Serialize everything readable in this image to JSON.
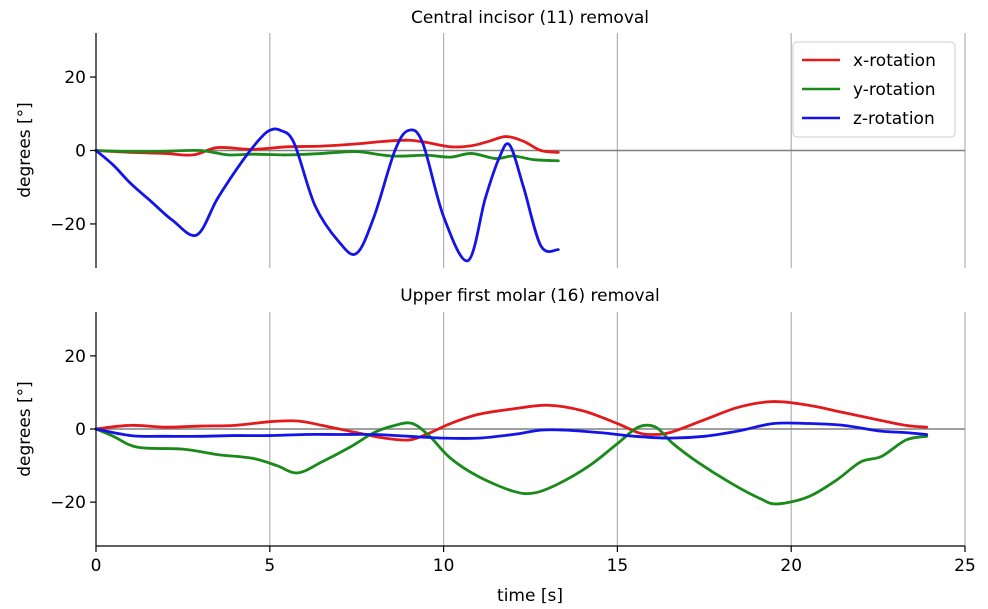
{
  "chart_data": [
    {
      "type": "line",
      "title": "Central incisor (11) removal",
      "xlabel": "",
      "ylabel": "degrees [°]",
      "xlim": [
        0,
        25
      ],
      "ylim": [
        -32,
        32
      ],
      "xticks": [
        0,
        5,
        10,
        15,
        20,
        25
      ],
      "yticks": [
        -20,
        0,
        20
      ],
      "ytick_labels": [
        "−20",
        "0",
        "20"
      ],
      "grid": "vertical",
      "legend": "top-right",
      "series": [
        {
          "name": "x-rotation",
          "color": "#e31a1c",
          "x": [
            0,
            1,
            2,
            2.8,
            3.5,
            4.5,
            5.5,
            6.5,
            7.5,
            8.3,
            9,
            9.5,
            10.2,
            10.8,
            11.3,
            11.8,
            12.3,
            12.8,
            13.3
          ],
          "y": [
            0,
            -0.5,
            -0.8,
            -1.2,
            0.8,
            0.3,
            1.0,
            1.2,
            1.8,
            2.5,
            2.8,
            2.2,
            1.0,
            1.3,
            2.5,
            3.8,
            2.5,
            0.0,
            -0.5
          ]
        },
        {
          "name": "y-rotation",
          "color": "#1a8a1a",
          "x": [
            0,
            1,
            2,
            3,
            3.8,
            4.5,
            5.5,
            6.5,
            7.5,
            8.5,
            9.5,
            10.2,
            10.8,
            11.5,
            12,
            12.6,
            13.3
          ],
          "y": [
            0,
            -0.3,
            -0.2,
            0.0,
            -1.2,
            -1.0,
            -1.2,
            -0.8,
            -0.3,
            -1.5,
            -1.3,
            -1.8,
            -0.8,
            -2.2,
            -1.5,
            -2.5,
            -2.8
          ]
        },
        {
          "name": "z-rotation",
          "color": "#1414e6",
          "x": [
            0,
            0.5,
            1,
            1.6,
            2.2,
            2.9,
            3.5,
            4.2,
            4.7,
            5.0,
            5.3,
            5.7,
            6.3,
            7.0,
            7.5,
            8.0,
            8.6,
            9.0,
            9.4,
            10.0,
            10.7,
            11.2,
            11.6,
            11.9,
            12.3,
            12.8,
            13.3
          ],
          "y": [
            0,
            -4,
            -9,
            -14,
            -19,
            -23,
            -13,
            -3,
            3,
            5.5,
            5.5,
            2,
            -15,
            -25,
            -28,
            -18,
            0,
            5.5,
            2,
            -18,
            -30,
            -13,
            -2,
            1.5,
            -10,
            -26,
            -27
          ]
        }
      ]
    },
    {
      "type": "line",
      "title": "Upper first molar (16) removal",
      "xlabel": "time [s]",
      "ylabel": "degrees [°]",
      "xlim": [
        0,
        25
      ],
      "ylim": [
        -32,
        32
      ],
      "xticks": [
        0,
        5,
        10,
        15,
        20,
        25
      ],
      "yticks": [
        -20,
        0,
        20
      ],
      "ytick_labels": [
        "−20",
        "0",
        "20"
      ],
      "grid": "vertical",
      "series": [
        {
          "name": "x-rotation",
          "color": "#e31a1c",
          "x": [
            0,
            1,
            2,
            3,
            4,
            5,
            5.8,
            6.5,
            7.5,
            8.3,
            9,
            9.5,
            10.2,
            11,
            12,
            13,
            14,
            15,
            15.6,
            16,
            16.5,
            17.5,
            18.5,
            19.5,
            20.5,
            21.5,
            22.5,
            23.3,
            23.9
          ],
          "y": [
            0,
            1,
            0.5,
            0.8,
            1.0,
            2.0,
            2.2,
            1.0,
            -1.0,
            -2.5,
            -3.0,
            -1.5,
            1.5,
            4.0,
            5.5,
            6.5,
            5.0,
            1.5,
            -1.0,
            -1.5,
            -1.0,
            2.5,
            6.0,
            7.5,
            6.5,
            4.5,
            2.5,
            1.0,
            0.5
          ]
        },
        {
          "name": "y-rotation",
          "color": "#1a8a1a",
          "x": [
            0,
            0.5,
            1.2,
            2.5,
            3.5,
            4.5,
            5.2,
            5.8,
            6.5,
            7.3,
            8,
            8.6,
            9.1,
            9.6,
            10.2,
            11,
            12,
            12.6,
            13.3,
            14.2,
            15,
            15.6,
            16.1,
            16.6,
            17.3,
            18.3,
            19.1,
            19.6,
            20.5,
            21.3,
            22,
            22.6,
            23.3,
            23.9
          ],
          "y": [
            0,
            -2,
            -5,
            -5.5,
            -7,
            -8,
            -10,
            -12,
            -9,
            -5,
            -1,
            1,
            1.5,
            -2,
            -8,
            -13,
            -17,
            -17.5,
            -15,
            -10,
            -4,
            0.5,
            0.5,
            -4,
            -9,
            -15,
            -19,
            -20.5,
            -18.5,
            -14,
            -9,
            -7.5,
            -3,
            -2
          ]
        },
        {
          "name": "z-rotation",
          "color": "#1414e6",
          "x": [
            0,
            1,
            2,
            3,
            4,
            5,
            6,
            7,
            8,
            9,
            10,
            11,
            12,
            12.8,
            13.5,
            14.5,
            15.5,
            16.5,
            17.5,
            18.5,
            19.5,
            20.5,
            21.5,
            22.5,
            23.3,
            23.9
          ],
          "y": [
            0,
            -1.8,
            -2,
            -2,
            -1.8,
            -1.8,
            -1.5,
            -1.5,
            -1.5,
            -2,
            -2.5,
            -2.5,
            -1.5,
            -0.3,
            -0.3,
            -1.0,
            -2.0,
            -2.5,
            -2.0,
            -0.5,
            1.5,
            1.5,
            1.0,
            -0.5,
            -1.0,
            -1.5
          ]
        }
      ]
    }
  ]
}
